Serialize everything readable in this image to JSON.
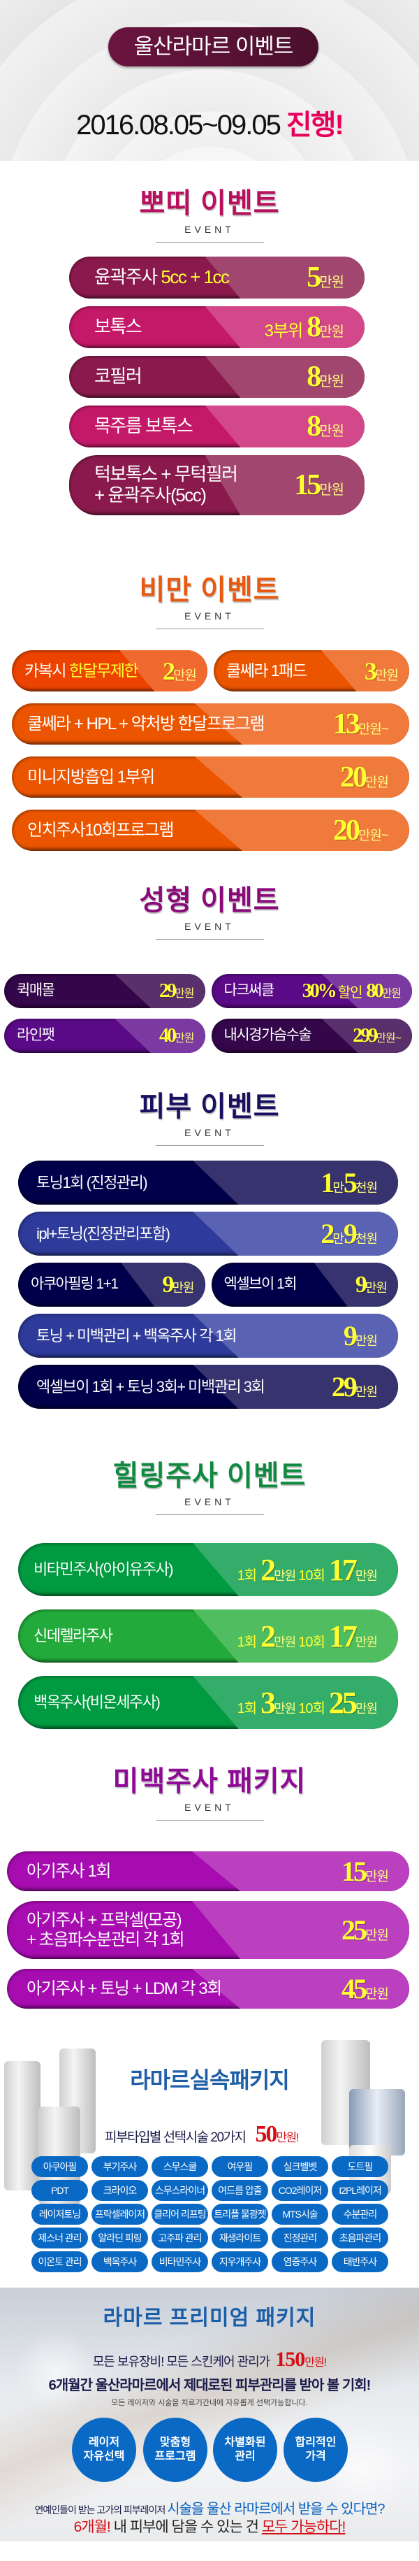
{
  "header": {
    "title": "울산라마르 이벤트",
    "date": "2016.08.05~09.05 ",
    "date_highlight": "진행!"
  },
  "sections": [
    {
      "title": "뽀띠 이벤트",
      "sub": "EVENT",
      "color": "#b8105e",
      "rows": [
        [
          {
            "label": [
              [
                {
                  "t": "윤곽주사 "
                },
                {
                  "t": "5cc + 1cc",
                  "hl": true
                }
              ]
            ],
            "price": [
              {
                "t": "5",
                "k": "big"
              },
              {
                "t": "만원",
                "k": "unit"
              }
            ],
            "colors": [
              "#8a1a4d",
              "#a1466f"
            ]
          }
        ],
        [
          {
            "label": [
              [
                {
                  "t": "보톡스"
                }
              ]
            ],
            "price": [
              {
                "t": "3부위",
                "k": "note"
              },
              {
                "t": "8",
                "k": "big"
              },
              {
                "t": "만원",
                "k": "unit"
              }
            ],
            "colors": [
              "#c41968",
              "#d3488a"
            ]
          }
        ],
        [
          {
            "label": [
              [
                {
                  "t": "코필러"
                }
              ]
            ],
            "price": [
              {
                "t": "8",
                "k": "big"
              },
              {
                "t": "만원",
                "k": "unit"
              }
            ],
            "colors": [
              "#8a1a4d",
              "#a1466f"
            ]
          }
        ],
        [
          {
            "label": [
              [
                {
                  "t": "목주름 보톡스"
                }
              ]
            ],
            "price": [
              {
                "t": "8",
                "k": "big"
              },
              {
                "t": "만원",
                "k": "unit"
              }
            ],
            "colors": [
              "#c41968",
              "#d3488a"
            ]
          }
        ],
        [
          {
            "label": [
              [
                {
                  "t": "턱보톡스 + 무턱필러"
                }
              ],
              [
                {
                  "t": "+ 윤곽주사(5cc)"
                }
              ]
            ],
            "price": [
              {
                "t": "15",
                "k": "big"
              },
              {
                "t": "만원",
                "k": "unit"
              }
            ],
            "colors": [
              "#8a1a4d",
              "#a1466f"
            ]
          }
        ]
      ]
    },
    {
      "title": "비만 이벤트",
      "sub": "EVENT",
      "color": "#e85a10",
      "rows": [
        [
          {
            "label": [
              [
                {
                  "t": "카복시 "
                },
                {
                  "t": "한달무제한",
                  "hl": true
                }
              ]
            ],
            "price": [
              {
                "t": "2",
                "k": "big"
              },
              {
                "t": "만원",
                "k": "unit"
              }
            ],
            "colors": [
              "#ec4400",
              "#f06a30"
            ]
          },
          {
            "label": [
              [
                {
                  "t": "쿨쎄라 1패드"
                }
              ]
            ],
            "price": [
              {
                "t": "3",
                "k": "big"
              },
              {
                "t": "만원",
                "k": "unit"
              }
            ],
            "colors": [
              "#ec5500",
              "#f07a3c"
            ]
          }
        ],
        [
          {
            "label": [
              [
                {
                  "t": "쿨쎄라 + HPL + 약처방 한달프로그램"
                }
              ]
            ],
            "price": [
              {
                "t": "13",
                "k": "big"
              },
              {
                "t": "만원~",
                "k": "unit"
              }
            ],
            "colors": [
              "#ec5500",
              "#f07a3c"
            ]
          }
        ],
        [
          {
            "label": [
              [
                {
                  "t": "미니지방흡입 1부위"
                }
              ]
            ],
            "price": [
              {
                "t": "20",
                "k": "big"
              },
              {
                "t": "만원",
                "k": "unit"
              }
            ],
            "colors": [
              "#ec5500",
              "#f07a3c"
            ]
          }
        ],
        [
          {
            "label": [
              [
                {
                  "t": "인치주사10회프로그램"
                }
              ]
            ],
            "price": [
              {
                "t": "20",
                "k": "big"
              },
              {
                "t": "만원~",
                "k": "unit"
              }
            ],
            "colors": [
              "#ec5500",
              "#f07a3c"
            ]
          }
        ]
      ]
    },
    {
      "title": "성형 이벤트",
      "sub": "EVENT",
      "color": "#8a0a7a",
      "rows": [
        [
          {
            "label": [
              [
                {
                  "t": "퀵매몰"
                }
              ]
            ],
            "price": [
              {
                "t": "29",
                "k": "big"
              },
              {
                "t": "만원",
                "k": "unit"
              }
            ],
            "colors": [
              "#34064a",
              "#5a306c"
            ]
          },
          {
            "label": [
              [
                {
                  "t": "다크써클"
                }
              ]
            ],
            "price": [
              {
                "t": "30%",
                "k": "big"
              },
              {
                "t": "할인",
                "k": "note"
              },
              {
                "t": "80",
                "k": "big"
              },
              {
                "t": "만원",
                "k": "unit"
              }
            ],
            "colors": [
              "#5a0a86",
              "#7b3aa1"
            ]
          }
        ],
        [
          {
            "label": [
              [
                {
                  "t": "라인팻"
                }
              ]
            ],
            "price": [
              {
                "t": "40",
                "k": "big"
              },
              {
                "t": "만원",
                "k": "unit"
              }
            ],
            "colors": [
              "#5a0a86",
              "#7b3aa1"
            ]
          },
          {
            "label": [
              [
                {
                  "t": "내시경가슴수술"
                }
              ]
            ],
            "price": [
              {
                "t": "299",
                "k": "big"
              },
              {
                "t": "만원~",
                "k": "unit"
              }
            ],
            "colors": [
              "#34064a",
              "#5a306c"
            ]
          }
        ]
      ]
    },
    {
      "title": "피부 이벤트",
      "sub": "EVENT",
      "color": "#1a1060",
      "rows": [
        [
          {
            "label": [
              [
                {
                  "t": "토닝1회 (진정관리)"
                }
              ]
            ],
            "price": [
              {
                "t": "1",
                "k": "big"
              },
              {
                "t": "만",
                "k": "unit"
              },
              {
                "t": "5",
                "k": "big"
              },
              {
                "t": "천원",
                "k": "unit"
              }
            ],
            "colors": [
              "#00004a",
              "#37336e"
            ]
          }
        ],
        [
          {
            "label": [
              [
                {
                  "t": "ipl+토닝(진정관리포함)"
                }
              ]
            ],
            "price": [
              {
                "t": "2",
                "k": "big"
              },
              {
                "t": "만",
                "k": "unit"
              },
              {
                "t": "9",
                "k": "big"
              },
              {
                "t": "천원",
                "k": "unit"
              }
            ],
            "colors": [
              "#2e3b9a",
              "#5a63b3"
            ]
          }
        ],
        [
          {
            "label": [
              [
                {
                  "t": "아쿠아필링 1+1"
                }
              ]
            ],
            "price": [
              {
                "t": "9",
                "k": "big"
              },
              {
                "t": "만원",
                "k": "unit"
              }
            ],
            "colors": [
              "#00004a",
              "#37336e"
            ]
          },
          {
            "label": [
              [
                {
                  "t": "엑셀브이 1회"
                }
              ]
            ],
            "price": [
              {
                "t": "9",
                "k": "big"
              },
              {
                "t": "만원",
                "k": "unit"
              }
            ],
            "colors": [
              "#00004a",
              "#37336e"
            ]
          }
        ],
        [
          {
            "label": [
              [
                {
                  "t": "토닝 + 미백관리 + 백옥주사 각 1회"
                }
              ]
            ],
            "price": [
              {
                "t": "9",
                "k": "big"
              },
              {
                "t": "만원",
                "k": "unit"
              }
            ],
            "colors": [
              "#2e3b9a",
              "#5a63b3"
            ]
          }
        ],
        [
          {
            "label": [
              [
                {
                  "t": "엑셀브이 1회 + 토닝 3회+ 미백관리 3회"
                }
              ]
            ],
            "price": [
              {
                "t": "29",
                "k": "big"
              },
              {
                "t": "만원",
                "k": "unit"
              }
            ],
            "colors": [
              "#00004a",
              "#37336e"
            ]
          }
        ]
      ]
    },
    {
      "title": "힐링주사 이벤트",
      "sub": "EVENT",
      "color": "#108a40",
      "rows": [
        [
          {
            "label": [
              [
                {
                  "t": "비타민주사(아이유주사)"
                }
              ]
            ],
            "price": [
              {
                "t": "1회",
                "k": "note"
              },
              {
                "t": "2",
                "k": "big"
              },
              {
                "t": "만원",
                "k": "unit"
              },
              {
                "t": "10회",
                "k": "note"
              },
              {
                "t": "17",
                "k": "big"
              },
              {
                "t": "만원",
                "k": "unit"
              }
            ],
            "colors": [
              "#009a40",
              "#34ad6a"
            ]
          }
        ],
        [
          {
            "label": [
              [
                {
                  "t": "신데렐라주사"
                }
              ]
            ],
            "price": [
              {
                "t": "1회",
                "k": "note"
              },
              {
                "t": "2",
                "k": "big"
              },
              {
                "t": "만원",
                "k": "unit"
              },
              {
                "t": "10회",
                "k": "note"
              },
              {
                "t": "17",
                "k": "big"
              },
              {
                "t": "만원",
                "k": "unit"
              }
            ],
            "colors": [
              "#22aa3a",
              "#50bd60"
            ]
          }
        ],
        [
          {
            "label": [
              [
                {
                  "t": "백옥주사(비온세주사)"
                }
              ]
            ],
            "price": [
              {
                "t": "1회",
                "k": "note"
              },
              {
                "t": "3",
                "k": "big"
              },
              {
                "t": "만원",
                "k": "unit"
              },
              {
                "t": "10회",
                "k": "note"
              },
              {
                "t": "25",
                "k": "big"
              },
              {
                "t": "만원",
                "k": "unit"
              }
            ],
            "colors": [
              "#009a40",
              "#34ad6a"
            ]
          }
        ]
      ]
    },
    {
      "title": "미백주사 패키지",
      "sub": "EVENT",
      "color": "#8e0a96",
      "rows": [
        [
          {
            "label": [
              [
                {
                  "t": "아기주사 1회"
                }
              ]
            ],
            "price": [
              {
                "t": "15",
                "k": "big"
              },
              {
                "t": "만원",
                "k": "unit"
              }
            ],
            "colors": [
              "#a60cb0",
              "#ba40c0"
            ]
          }
        ],
        [
          {
            "label": [
              [
                {
                  "t": "아기주사 + 프락셀(모공)"
                }
              ],
              [
                {
                  "t": "+ 초음파수분관리 각 1회"
                }
              ]
            ],
            "price": [
              {
                "t": "25",
                "k": "big"
              },
              {
                "t": "만원",
                "k": "unit"
              }
            ],
            "colors": [
              "#a60cb0",
              "#ba40c0"
            ]
          }
        ],
        [
          {
            "label": [
              [
                {
                  "t": "아기주사 + 토닝 + LDM 각 3회"
                }
              ]
            ],
            "price": [
              {
                "t": "45",
                "k": "big"
              },
              {
                "t": "만원",
                "k": "unit"
              }
            ],
            "colors": [
              "#a60cb0",
              "#ba40c0"
            ]
          }
        ]
      ]
    }
  ],
  "package": {
    "title": "라마르실속패키지",
    "subtitle": "피부타입별 선택시술 20가지",
    "price": "50",
    "price_unit": "만원!",
    "chips": [
      "아쿠아필",
      "부기주사",
      "스무스쿨",
      "여우필",
      "실크벨벳",
      "도트필",
      "PDT",
      "크라이오",
      "스무스라이너",
      "여드름 압출",
      "CO2레이저",
      "I2PL레이저",
      "레이저토닝",
      "프락셀레이저",
      "클리어 리프팅",
      "트리플 물광젯",
      "MTS시술",
      "수분관리",
      "제스너 관리",
      "알라딘 피링",
      "고주파 관리",
      "재생라이트",
      "진정관리",
      "초음파관리",
      "이온토 관리",
      "백옥주사",
      "비타민주사",
      "지우개주사",
      "염증주사",
      "태반주사"
    ],
    "chip_color": "#0a69c4"
  },
  "premium": {
    "title": "라마르 프리미엄 패키지",
    "line1": "모든 보유장비! 모든 스킨케어 관리가",
    "line1_price": "150",
    "line1_unit": "만원!",
    "line2": "6개월간 울산라마르에서 제대로된 피부관리를 받아 볼 기회!",
    "note": "모든 레이저와 시술을 치료기간내에 자유롭게 선택가능합니다.",
    "circles": [
      [
        "레이저",
        "자유선택"
      ],
      [
        "맞춤형",
        "프로그램"
      ],
      [
        "차별화된",
        "관리"
      ],
      [
        "합리적인",
        "가격"
      ]
    ],
    "bottom1_a": "연예인들이 받는 고가의 피부레이저 ",
    "bottom1_b": "시술을 울산 라마르에서 받을 수 있다면?",
    "bottom2_a": "6개월!",
    "bottom2_b": " 내 피부에 담을 수 있는 건 ",
    "bottom2_c": "모두 가능하다!"
  }
}
